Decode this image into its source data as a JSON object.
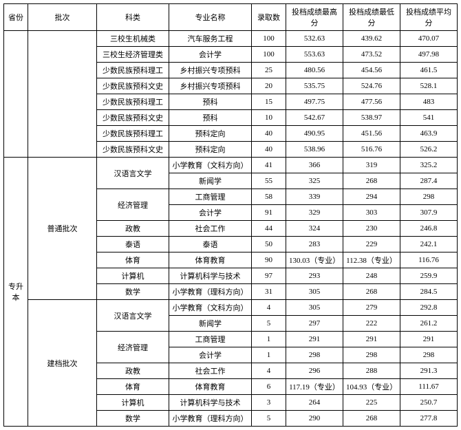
{
  "headers": {
    "province": "省份",
    "batch": "批次",
    "department": "科类",
    "major": "专业名称",
    "admit": "录取数",
    "high": "投档成绩最高分",
    "low": "投档成绩最低分",
    "avg": "投档成绩平均分"
  },
  "groups": [
    {
      "province": "",
      "batch": "",
      "subgroups": [
        {
          "dept_rows": [
            {
              "dept": "三校生机械类",
              "major": "汽车服务工程",
              "admit": "100",
              "high": "532.63",
              "low": "439.62",
              "avg": "470.07"
            },
            {
              "dept": "三校生经济管理类",
              "major": "会计学",
              "admit": "100",
              "high": "553.63",
              "low": "473.52",
              "avg": "497.98"
            },
            {
              "dept": "少数民族预科理工",
              "major": "乡村振兴专项预科",
              "admit": "25",
              "high": "480.56",
              "low": "454.56",
              "avg": "461.5"
            },
            {
              "dept": "少数民族预科文史",
              "major": "乡村振兴专项预科",
              "admit": "20",
              "high": "535.75",
              "low": "524.76",
              "avg": "528.1"
            },
            {
              "dept": "少数民族预科理工",
              "major": "预科",
              "admit": "15",
              "high": "497.75",
              "low": "477.56",
              "avg": "483"
            },
            {
              "dept": "少数民族预科文史",
              "major": "预科",
              "admit": "10",
              "high": "542.67",
              "low": "538.97",
              "avg": "541"
            },
            {
              "dept": "少数民族预科理工",
              "major": "预科定向",
              "admit": "40",
              "high": "490.95",
              "low": "451.56",
              "avg": "463.9"
            },
            {
              "dept": "少数民族预科文史",
              "major": "预科定向",
              "admit": "40",
              "high": "538.96",
              "low": "516.76",
              "avg": "526.2"
            }
          ]
        }
      ]
    },
    {
      "province": "专升本",
      "batch": "普通批次",
      "subgroups": [
        {
          "dept": "汉语言文学",
          "rows": [
            {
              "major": "小学教育（文科方向）",
              "admit": "41",
              "high": "366",
              "low": "319",
              "avg": "325.2"
            },
            {
              "major": "新闻学",
              "admit": "55",
              "high": "325",
              "low": "268",
              "avg": "287.4"
            }
          ]
        },
        {
          "dept": "经济管理",
          "rows": [
            {
              "major": "工商管理",
              "admit": "58",
              "high": "339",
              "low": "294",
              "avg": "298"
            },
            {
              "major": "会计学",
              "admit": "91",
              "high": "329",
              "low": "303",
              "avg": "307.9"
            }
          ]
        },
        {
          "dept": "政教",
          "rows": [
            {
              "major": "社会工作",
              "admit": "44",
              "high": "324",
              "low": "230",
              "avg": "246.8"
            }
          ]
        },
        {
          "dept": "泰语",
          "rows": [
            {
              "major": "泰语",
              "admit": "50",
              "high": "283",
              "low": "229",
              "avg": "242.1"
            }
          ]
        },
        {
          "dept": "体育",
          "rows": [
            {
              "major": "体育教育",
              "admit": "90",
              "high": "130.03（专业）",
              "low": "112.38（专业）",
              "avg": "116.76"
            }
          ]
        },
        {
          "dept": "计算机",
          "rows": [
            {
              "major": "计算机科学与技术",
              "admit": "97",
              "high": "293",
              "low": "248",
              "avg": "259.9"
            }
          ]
        },
        {
          "dept": "数学",
          "rows": [
            {
              "major": "小学教育（理科方向）",
              "admit": "31",
              "high": "305",
              "low": "268",
              "avg": "284.5"
            }
          ]
        }
      ]
    },
    {
      "province": "",
      "batch": "建档批次",
      "subgroups": [
        {
          "dept": "汉语言文学",
          "rows": [
            {
              "major": "小学教育（文科方向）",
              "admit": "4",
              "high": "305",
              "low": "279",
              "avg": "292.8"
            },
            {
              "major": "新闻学",
              "admit": "5",
              "high": "297",
              "low": "222",
              "avg": "261.2"
            }
          ]
        },
        {
          "dept": "经济管理",
          "rows": [
            {
              "major": "工商管理",
              "admit": "1",
              "high": "291",
              "low": "291",
              "avg": "291"
            },
            {
              "major": "会计学",
              "admit": "1",
              "high": "298",
              "low": "298",
              "avg": "298"
            }
          ]
        },
        {
          "dept": "政教",
          "rows": [
            {
              "major": "社会工作",
              "admit": "4",
              "high": "296",
              "low": "288",
              "avg": "291.3"
            }
          ]
        },
        {
          "dept": "体育",
          "rows": [
            {
              "major": "体育教育",
              "admit": "6",
              "high": "117.19（专业）",
              "low": "104.93（专业）",
              "avg": "111.67"
            }
          ]
        },
        {
          "dept": "计算机",
          "rows": [
            {
              "major": "计算机科学与技术",
              "admit": "3",
              "high": "264",
              "low": "225",
              "avg": "250.7"
            }
          ]
        },
        {
          "dept": "数学",
          "rows": [
            {
              "major": "小学教育（理科方向）",
              "admit": "5",
              "high": "290",
              "low": "268",
              "avg": "277.8"
            }
          ]
        }
      ]
    }
  ]
}
